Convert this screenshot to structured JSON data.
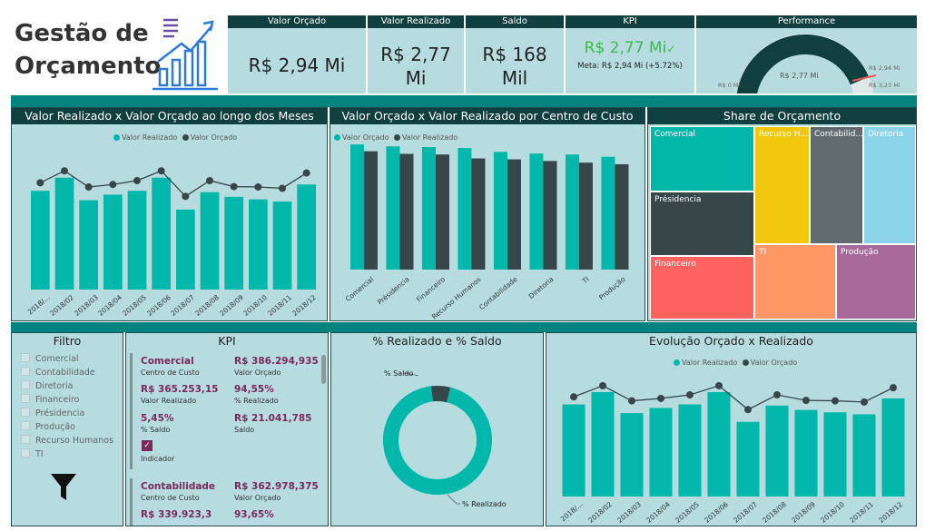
{
  "header": {
    "title_line1": "Gestão de",
    "title_line2": "Orçamento",
    "cards": [
      {
        "label": "Valor Orçado",
        "value": "R$ 2,94 Mi"
      },
      {
        "label": "Valor Realizado",
        "value_line1": "R$ 2,77",
        "value_line2": "Mi"
      },
      {
        "label": "Saldo",
        "value_line1": "R$ 168",
        "value_line2": "Mil"
      },
      {
        "label": "KPI",
        "value": "R$ 2,77 Mi",
        "check": "✓",
        "meta": "Meta: R$ 2,94 Mi (+5.72%)"
      },
      {
        "label": "Performance",
        "gauge_min": "R$ 0 Mi",
        "gauge_value": "R$ 2,77 Mi",
        "gauge_target": "R$ 2,94 Mi",
        "gauge_max": "R$ 3,23 Mi"
      }
    ]
  },
  "colors": {
    "teal": "#01b8aa",
    "dark": "#374649",
    "header": "#0f3f3f",
    "panel": "#b6dcdf",
    "band": "#00837f"
  },
  "panels": {
    "monthly_title": "Valor Realizado x Valor Orçado ao longo dos Meses",
    "center_title": "Valor Orçado x Valor Realizado por Centro de Custo",
    "share_title": "Share de Orçamento",
    "filter_title": "Filtro",
    "kpi_title": "KPI",
    "donut_title": "% Realizado e % Saldo",
    "evolution_title": "Evolução Orçado x Realizado"
  },
  "monthly_legend": [
    "Valor Realizado",
    "Valor Orçado"
  ],
  "center_legend": [
    "Valor Orçado",
    "Valor Realizado"
  ],
  "evolution_legend": [
    "Valor Realizado",
    "Valor Orçado"
  ],
  "chart_data": [
    {
      "type": "bar",
      "title": "Valor Realizado x Valor Orçado ao longo dos Meses",
      "categories": [
        "2018/...",
        "2018/02",
        "2018/03",
        "2018/04",
        "2018/05",
        "2018/06",
        "2018/07",
        "2018/08",
        "2018/09",
        "2018/10",
        "2018/11",
        "2018/12"
      ],
      "series": [
        {
          "name": "Valor Realizado",
          "values": [
            232,
            263,
            210,
            223,
            232,
            263,
            188,
            229,
            218,
            212,
            207,
            247
          ]
        },
        {
          "name": "Valor Orçado",
          "values": [
            251,
            279,
            241,
            247,
            256,
            279,
            219,
            256,
            242,
            241,
            238,
            274
          ]
        }
      ],
      "ylim": [
        0,
        320
      ]
    },
    {
      "type": "bar",
      "title": "Valor Orçado x Valor Realizado por Centro de Custo",
      "categories": [
        "Comercial",
        "Présidencia",
        "Financeiro",
        "Recurso Humanos",
        "Contabilidade",
        "Diretoria",
        "TI",
        "Produção"
      ],
      "series": [
        {
          "name": "Valor Orçado",
          "values": [
            386,
            380,
            378,
            375,
            363,
            358,
            355,
            348
          ]
        },
        {
          "name": "Valor Realizado",
          "values": [
            365,
            357,
            355,
            343,
            340,
            335,
            330,
            325
          ]
        }
      ],
      "ylim": [
        0,
        420
      ]
    },
    {
      "type": "heatmap",
      "title": "Share de Orçamento",
      "categories": [
        "Comercial",
        "Recurso H...",
        "Contabilid...",
        "Diretoria",
        "Présidencia",
        "TI",
        "Produção",
        "Financeiro"
      ],
      "colors": [
        "#01b8aa",
        "#f2c80f",
        "#5f6b6d",
        "#8ad4eb",
        "#374649",
        "#fe9666",
        "#a66999",
        "#fd625e"
      ]
    },
    {
      "type": "pie",
      "title": "% Realizado e % Saldo",
      "categories": [
        "% Realizado",
        "% Saldo"
      ],
      "values": [
        94.3,
        5.7
      ]
    },
    {
      "type": "bar",
      "title": "Evolução Orçado x Realizado",
      "categories": [
        "2018/...",
        "2018/02",
        "2018/03",
        "2018/04",
        "2018/05",
        "2018/06",
        "2018/07",
        "2018/08",
        "2018/09",
        "2018/10",
        "2018/11",
        "2018/12"
      ],
      "series": [
        {
          "name": "Valor Realizado",
          "values": [
            232,
            263,
            210,
            223,
            232,
            263,
            188,
            229,
            218,
            212,
            207,
            247
          ]
        },
        {
          "name": "Valor Orçado",
          "values": [
            251,
            279,
            241,
            247,
            256,
            279,
            219,
            256,
            242,
            241,
            238,
            274
          ]
        }
      ],
      "ylim": [
        0,
        320
      ]
    }
  ],
  "filter": {
    "items": [
      "Comercial",
      "Contabilidade",
      "Diretoria",
      "Financeiro",
      "Présidencia",
      "Produção",
      "Recurso Humanos",
      "TI"
    ]
  },
  "kpi": {
    "blocks": [
      {
        "name": "Comercial",
        "name_sub": "Centro de Custo",
        "orcado": "R$ 386.294,935",
        "orcado_label": "Valor Orçado",
        "realizado": "R$ 365.253,15",
        "realizado_label": "Valor Realizado",
        "pct": "94,55%",
        "pct_label": "% Realizado",
        "saldo_pct": "5,45%",
        "saldo_pct_label": "% Saldo",
        "saldo": "R$ 21.041,785",
        "saldo_label": "Saldo",
        "indicator_label": "Indicador"
      },
      {
        "name": "Contabilidade",
        "name_sub": "Centro de Custo",
        "orcado": "R$ 362.978,375",
        "orcado_label": "Valor Orçado",
        "realizado": "R$ 339.923,3",
        "pct": "93,65%"
      }
    ]
  }
}
